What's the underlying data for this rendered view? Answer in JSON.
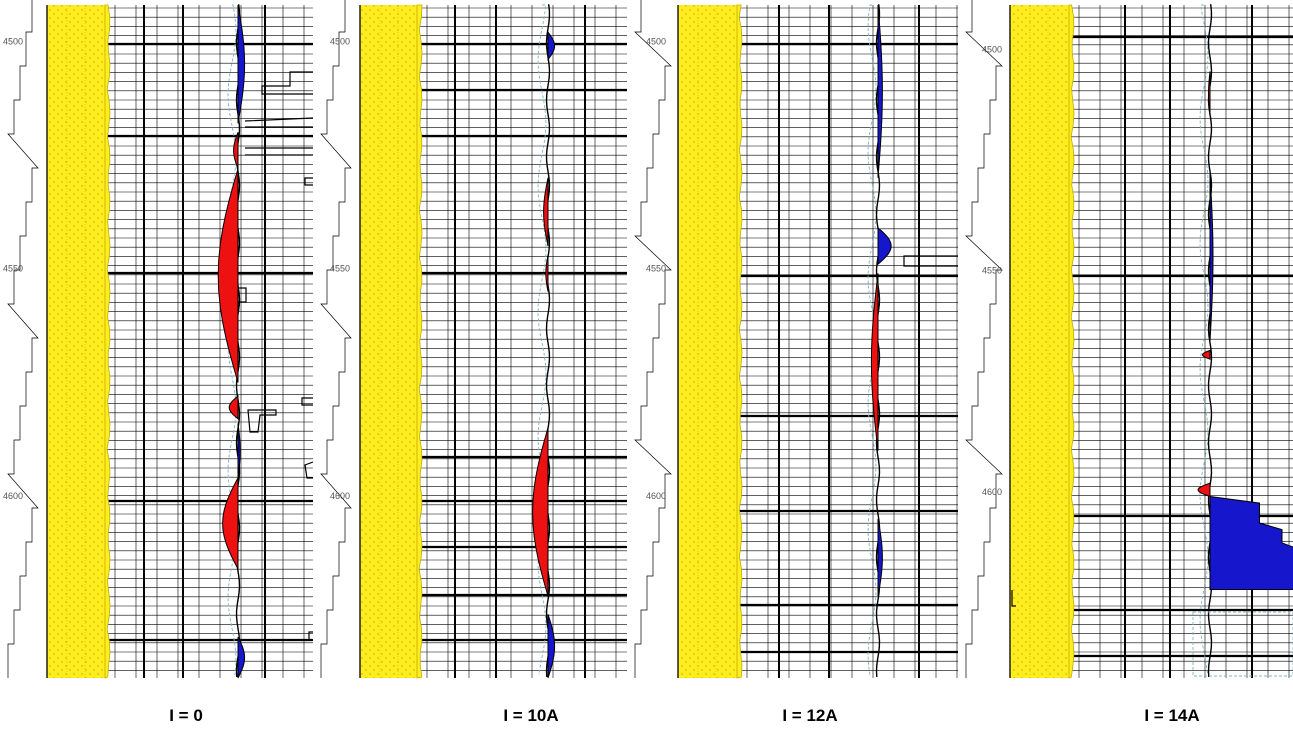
{
  "figure": {
    "depth_ticks": [
      "4500",
      "4550",
      "4600"
    ],
    "colors": {
      "track_fill": "#ffed1f",
      "track_stipple": "#b9a800",
      "track_edge": "#c2ae00",
      "anomaly_positive": "#ee1111",
      "anomaly_negative": "#1616cc",
      "baseline": "#7fb5c2",
      "grid": "#000000"
    }
  },
  "chart_data": [
    {
      "type": "line",
      "caption": "I = 0",
      "depth_range": [
        4492,
        4640
      ],
      "ticks": [
        4500,
        4550,
        4600
      ],
      "polarity": [
        {
          "from": 4492,
          "to": 4518,
          "sign": "negative",
          "peak": 0.03
        },
        {
          "from": 4520,
          "to": 4528,
          "sign": "positive",
          "peak": 0.02
        },
        {
          "from": 4528,
          "to": 4575,
          "sign": "positive",
          "peak": 0.09
        },
        {
          "from": 4578,
          "to": 4583,
          "sign": "positive",
          "peak": 0.04
        },
        {
          "from": 4584,
          "to": 4596,
          "sign": "negative",
          "peak": 0.01
        },
        {
          "from": 4596,
          "to": 4616,
          "sign": "positive",
          "peak": 0.07
        },
        {
          "from": 4631,
          "to": 4640,
          "sign": "negative",
          "peak": 0.03
        }
      ]
    },
    {
      "type": "line",
      "caption": "I = 10A",
      "depth_range": [
        4492,
        4640
      ],
      "ticks": [
        4500,
        4550,
        4600
      ],
      "polarity": [
        {
          "from": 4498,
          "to": 4504,
          "sign": "negative",
          "peak": 0.03
        },
        {
          "from": 4530,
          "to": 4545,
          "sign": "positive",
          "peak": 0.02
        },
        {
          "from": 4547,
          "to": 4555,
          "sign": "positive",
          "peak": 0.01
        },
        {
          "from": 4585,
          "to": 4622,
          "sign": "positive",
          "peak": 0.07
        },
        {
          "from": 4626,
          "to": 4640,
          "sign": "negative",
          "peak": 0.03
        }
      ]
    },
    {
      "type": "line",
      "caption": "I = 12A",
      "depth_range": [
        4492,
        4640
      ],
      "ticks": [
        4500,
        4550,
        4600
      ],
      "polarity": [
        {
          "from": 4492,
          "to": 4530,
          "sign": "negative",
          "peak": 0.02
        },
        {
          "from": 4541,
          "to": 4549,
          "sign": "negative",
          "peak": 0.06
        },
        {
          "from": 4551,
          "to": 4590,
          "sign": "positive",
          "peak": 0.03
        },
        {
          "from": 4605,
          "to": 4622,
          "sign": "negative",
          "peak": 0.02
        }
      ]
    },
    {
      "type": "line",
      "caption": "I = 14A",
      "depth_range": [
        4490,
        4642
      ],
      "ticks": [
        4500,
        4550,
        4600
      ],
      "polarity": [
        {
          "from": 4505,
          "to": 4515,
          "sign": "positive",
          "peak": 0.01
        },
        {
          "from": 4528,
          "to": 4566,
          "sign": "negative",
          "peak": 0.02
        },
        {
          "from": 4568,
          "to": 4570,
          "sign": "positive",
          "peak": 0.05
        },
        {
          "from": 4598,
          "to": 4601,
          "sign": "positive",
          "peak": 0.08
        },
        {
          "from": 4601,
          "to": 4622,
          "sign": "negative",
          "peak": 0.6
        }
      ]
    }
  ]
}
